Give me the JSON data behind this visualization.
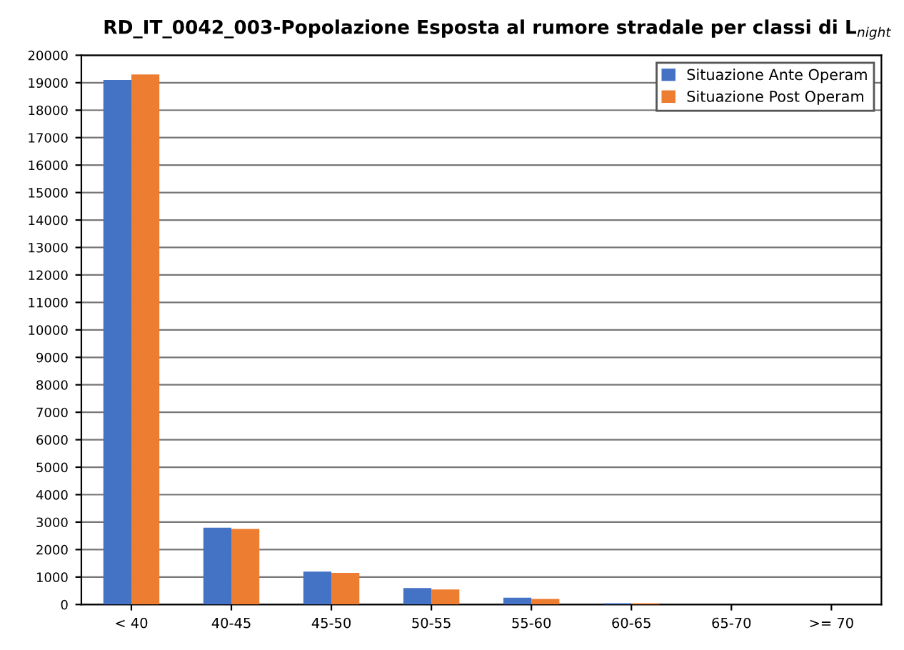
{
  "chart_data": {
    "type": "bar",
    "title": "RD_IT_0042_003-Popolazione Esposta al rumore stradale per classi di L$_{night}$",
    "categories": [
      "< 40",
      "40-45",
      "45-50",
      "50-55",
      "55-60",
      "60-65",
      "65-70",
      ">= 70"
    ],
    "series": [
      {
        "name": "Situazione Ante Operam",
        "color": "#4472c4",
        "values": [
          19100,
          2800,
          1200,
          600,
          250,
          50,
          null,
          0
        ]
      },
      {
        "name": "Situazione Post Operam",
        "color": "#ed7d31",
        "values": [
          19300,
          2750,
          1150,
          550,
          200,
          50,
          null,
          0
        ]
      }
    ],
    "ylim": [
      0,
      20000
    ],
    "yticks": [
      0,
      1000,
      2000,
      3000,
      4000,
      5000,
      6000,
      7000,
      8000,
      9000,
      10000,
      11000,
      12000,
      13000,
      14000,
      15000,
      16000,
      17000,
      18000,
      19000,
      20000
    ],
    "grid": "y",
    "legend": "top right"
  }
}
